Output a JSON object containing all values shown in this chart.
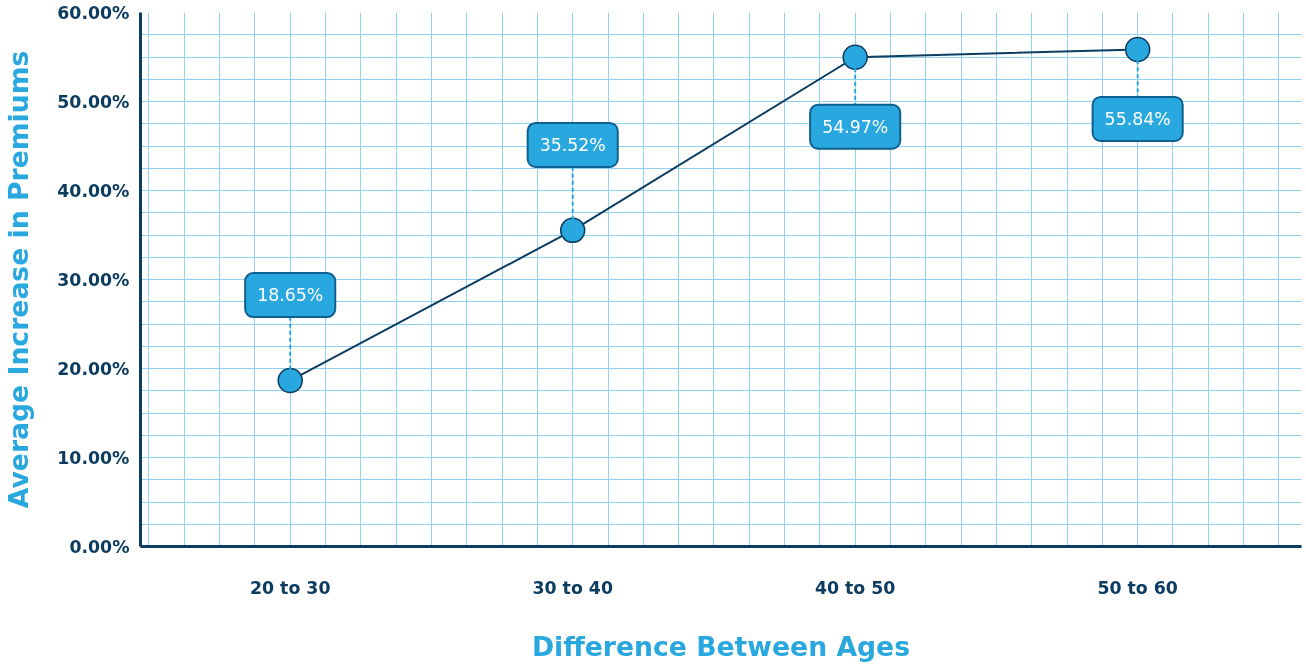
{
  "chart_data": {
    "type": "line",
    "xlabel": "Difference Between Ages",
    "ylabel": "Average Increase in Premiums",
    "categories": [
      "20 to 30",
      "30 to 40",
      "40 to 50",
      "50 to 60"
    ],
    "series": [
      {
        "color": "#0d3c61",
        "values": [
          18.65,
          35.52,
          54.97,
          55.84
        ],
        "value_labels": [
          "18.65%",
          "35.52%",
          "54.97%",
          "55.84%"
        ]
      }
    ],
    "ylim": [
      0,
      60
    ],
    "yticks": [
      {
        "value": 0,
        "label": "0.00%"
      },
      {
        "value": 10,
        "label": "10.00%"
      },
      {
        "value": 20,
        "label": "20.00%"
      },
      {
        "value": 30,
        "label": "30.00%"
      },
      {
        "value": 40,
        "label": "40.00%"
      },
      {
        "value": 50,
        "label": "50.00%"
      },
      {
        "value": 60,
        "label": "60.00%"
      }
    ],
    "grid": true,
    "marker": "circle",
    "line_style": "solid"
  }
}
